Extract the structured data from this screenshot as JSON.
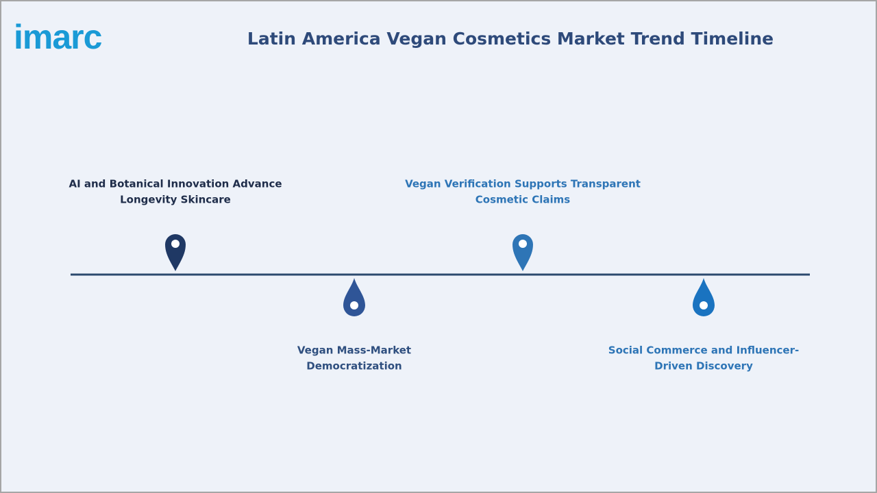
{
  "logo": "imarc",
  "title": "Latin America Vegan Cosmetics Market Trend Timeline",
  "items": [
    {
      "lines": [
        "AI and Botanical Innovation Advance",
        "Longevity Skincare"
      ]
    },
    {
      "lines": [
        "Vegan Mass-Market",
        "Democratization"
      ]
    },
    {
      "lines": [
        "Vegan Verification Supports Transparent",
        "Cosmetic Claims"
      ]
    },
    {
      "lines": [
        "Social Commerce and Influencer-",
        "Driven Discovery"
      ]
    }
  ]
}
